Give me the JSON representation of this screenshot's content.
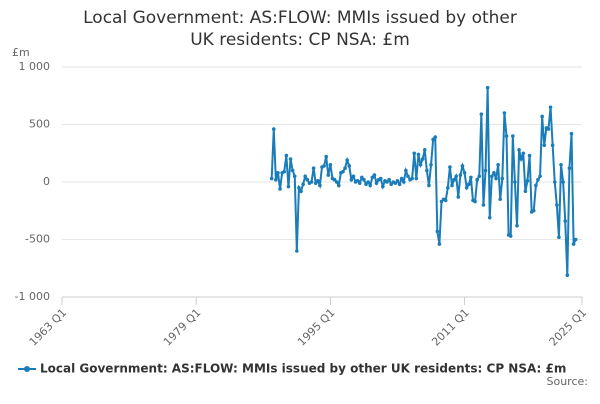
{
  "chart_data": {
    "type": "line",
    "title": "Local Government: AS:FLOW: MMIs issued by other UK residents: CP NSA: £m",
    "y_unit_label": "£m",
    "source_label": "Source:",
    "xlim": [
      "1963 Q1",
      "2025 Q1"
    ],
    "xticks": [
      "1963 Q1",
      "1979 Q1",
      "1995 Q1",
      "2011 Q1",
      "2025 Q1"
    ],
    "ylim": [
      -1000,
      1000
    ],
    "yticks": [
      {
        "value": 1000,
        "label": "1 000"
      },
      500,
      0,
      -500,
      {
        "value": -1000,
        "label": "-1 000"
      }
    ],
    "grid": true,
    "legend": "bottom",
    "x": [
      "1988 Q1",
      "1988 Q2",
      "1988 Q3",
      "1988 Q4",
      "1989 Q1",
      "1989 Q2",
      "1989 Q3",
      "1989 Q4",
      "1990 Q1",
      "1990 Q2",
      "1990 Q3",
      "1990 Q4",
      "1991 Q1",
      "1991 Q2",
      "1991 Q3",
      "1991 Q4",
      "1992 Q1",
      "1992 Q2",
      "1992 Q3",
      "1992 Q4",
      "1993 Q1",
      "1993 Q2",
      "1993 Q3",
      "1993 Q4",
      "1994 Q1",
      "1994 Q2",
      "1994 Q3",
      "1994 Q4",
      "1995 Q1",
      "1995 Q2",
      "1995 Q3",
      "1995 Q4",
      "1996 Q1",
      "1996 Q2",
      "1996 Q3",
      "1996 Q4",
      "1997 Q1",
      "1997 Q2",
      "1997 Q3",
      "1997 Q4",
      "1998 Q1",
      "1998 Q2",
      "1998 Q3",
      "1998 Q4",
      "1999 Q1",
      "1999 Q2",
      "1999 Q3",
      "1999 Q4",
      "2000 Q1",
      "2000 Q2",
      "2000 Q3",
      "2000 Q4",
      "2001 Q1",
      "2001 Q2",
      "2001 Q3",
      "2001 Q4",
      "2002 Q1",
      "2002 Q2",
      "2002 Q3",
      "2002 Q4",
      "2003 Q1",
      "2003 Q2",
      "2003 Q3",
      "2003 Q4",
      "2004 Q1",
      "2004 Q2",
      "2004 Q3",
      "2004 Q4",
      "2005 Q1",
      "2005 Q2",
      "2005 Q3",
      "2005 Q4",
      "2006 Q1",
      "2006 Q2",
      "2006 Q3",
      "2006 Q4",
      "2007 Q1",
      "2007 Q2",
      "2007 Q3",
      "2007 Q4",
      "2008 Q1",
      "2008 Q2",
      "2008 Q3",
      "2008 Q4",
      "2009 Q1",
      "2009 Q2",
      "2009 Q3",
      "2009 Q4",
      "2010 Q1",
      "2010 Q2",
      "2010 Q3",
      "2010 Q4",
      "2011 Q1",
      "2011 Q2",
      "2011 Q3",
      "2011 Q4",
      "2012 Q1",
      "2012 Q2",
      "2012 Q3",
      "2012 Q4",
      "2013 Q1",
      "2013 Q2",
      "2013 Q3",
      "2013 Q4",
      "2014 Q1",
      "2014 Q2",
      "2014 Q3",
      "2014 Q4",
      "2015 Q1",
      "2015 Q2",
      "2015 Q3",
      "2015 Q4",
      "2016 Q1",
      "2016 Q2",
      "2016 Q3",
      "2016 Q4",
      "2017 Q1",
      "2017 Q2",
      "2017 Q3",
      "2017 Q4",
      "2018 Q1",
      "2018 Q2",
      "2018 Q3",
      "2018 Q4",
      "2019 Q1",
      "2019 Q2",
      "2019 Q3",
      "2019 Q4",
      "2020 Q1",
      "2020 Q2",
      "2020 Q3",
      "2020 Q4",
      "2021 Q1",
      "2021 Q2",
      "2021 Q3",
      "2021 Q4",
      "2022 Q1",
      "2022 Q2",
      "2022 Q3",
      "2022 Q4",
      "2023 Q1",
      "2023 Q2",
      "2023 Q3",
      "2023 Q4",
      "2024 Q1",
      "2024 Q2"
    ],
    "series": [
      {
        "name": "Local Government: AS:FLOW: MMIs issued by other UK residents: CP NSA: £m",
        "color": "#1a7cb8",
        "values": [
          30,
          460,
          20,
          80,
          -60,
          80,
          90,
          230,
          -40,
          200,
          100,
          50,
          -600,
          -50,
          -80,
          -20,
          50,
          20,
          -10,
          0,
          120,
          -10,
          10,
          -30,
          130,
          140,
          220,
          60,
          150,
          30,
          20,
          0,
          -30,
          80,
          90,
          120,
          190,
          140,
          20,
          50,
          0,
          10,
          -10,
          40,
          20,
          -20,
          0,
          -30,
          40,
          60,
          -10,
          20,
          30,
          -40,
          10,
          0,
          20,
          -20,
          0,
          -10,
          10,
          -20,
          30,
          0,
          100,
          50,
          20,
          30,
          250,
          30,
          240,
          150,
          200,
          280,
          100,
          -30,
          150,
          370,
          390,
          -430,
          -540,
          -170,
          -150,
          -160,
          -50,
          130,
          -30,
          20,
          50,
          -130,
          60,
          140,
          80,
          -50,
          -20,
          40,
          -160,
          -170,
          20,
          50,
          590,
          -200,
          100,
          820,
          -310,
          50,
          80,
          30,
          150,
          -150,
          30,
          600,
          400,
          -460,
          -470,
          400,
          0,
          -380,
          280,
          200,
          250,
          -80,
          10,
          230,
          -260,
          -250,
          -30,
          20,
          50,
          570,
          320,
          470,
          460,
          650,
          320,
          0,
          -200,
          -480,
          150,
          0,
          -340,
          -810,
          120,
          420,
          -540,
          -500
        ]
      }
    ]
  }
}
